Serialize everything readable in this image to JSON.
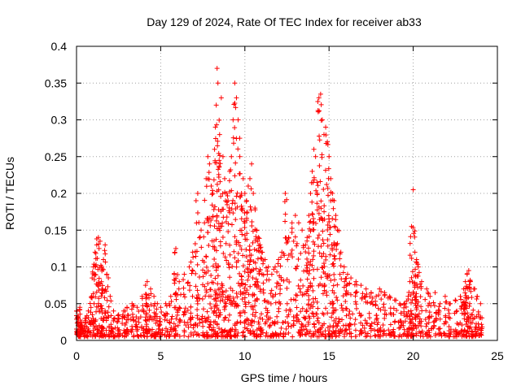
{
  "chart_data": {
    "type": "scatter",
    "title": "Day 129 of 2024, Rate Of TEC Index for receiver ab33",
    "xlabel": "GPS time / hours",
    "ylabel": "ROTI / TECUs",
    "xlim": [
      0,
      25
    ],
    "ylim": [
      0,
      0.4
    ],
    "xticks": [
      "0",
      "5",
      "10",
      "15",
      "20",
      "25"
    ],
    "yticks": [
      "0",
      "0.05",
      "0.1",
      "0.15",
      "0.2",
      "0.25",
      "0.3",
      "0.35",
      "0.4"
    ],
    "grid": true,
    "marker": "+",
    "color": "#ff0000",
    "series": [
      {
        "name": "ROTI",
        "description_points": "representative sample of plotted points (hours, TECU/min)",
        "x": [
          0.0,
          0.1,
          0.2,
          0.3,
          0.5,
          0.7,
          0.9,
          1.0,
          1.1,
          1.2,
          1.3,
          1.4,
          1.5,
          1.6,
          1.7,
          1.8,
          2.0,
          2.2,
          2.5,
          2.8,
          3.0,
          3.3,
          3.6,
          3.9,
          4.1,
          4.2,
          4.4,
          4.6,
          4.8,
          5.0,
          5.3,
          5.6,
          5.8,
          5.9,
          6.1,
          6.4,
          6.7,
          6.9,
          7.1,
          7.2,
          7.4,
          7.6,
          7.7,
          7.8,
          7.9,
          8.0,
          8.1,
          8.2,
          8.25,
          8.3,
          8.35,
          8.4,
          8.5,
          8.6,
          8.7,
          8.8,
          8.9,
          9.0,
          9.1,
          9.2,
          9.3,
          9.4,
          9.5,
          9.6,
          9.7,
          9.8,
          9.9,
          10.0,
          10.1,
          10.2,
          10.3,
          10.4,
          10.5,
          10.6,
          10.7,
          10.8,
          10.9,
          11.0,
          11.2,
          11.4,
          11.6,
          11.8,
          12.0,
          12.2,
          12.4,
          12.6,
          12.8,
          13.0,
          13.2,
          13.4,
          13.6,
          13.7,
          13.8,
          13.9,
          14.0,
          14.1,
          14.2,
          14.3,
          14.4,
          14.5,
          14.6,
          14.7,
          14.8,
          14.9,
          15.0,
          15.1,
          15.2,
          15.3,
          15.4,
          15.5,
          15.7,
          15.9,
          16.1,
          16.3,
          16.6,
          16.9,
          17.2,
          17.5,
          17.8,
          18.0,
          18.3,
          18.6,
          18.9,
          19.2,
          19.5,
          19.7,
          19.8,
          19.9,
          20.0,
          20.1,
          20.2,
          20.3,
          20.5,
          20.8,
          21.0,
          21.3,
          21.6,
          21.9,
          22.2,
          22.5,
          22.8,
          23.0,
          23.1,
          23.2,
          23.3,
          23.4,
          23.6,
          23.8,
          24.0
        ],
        "y": [
          0.04,
          0.03,
          0.045,
          0.025,
          0.03,
          0.04,
          0.06,
          0.1,
          0.12,
          0.13,
          0.14,
          0.135,
          0.1,
          0.11,
          0.13,
          0.09,
          0.06,
          0.04,
          0.035,
          0.04,
          0.045,
          0.05,
          0.045,
          0.06,
          0.075,
          0.08,
          0.07,
          0.06,
          0.05,
          0.045,
          0.05,
          0.06,
          0.09,
          0.125,
          0.08,
          0.09,
          0.1,
          0.12,
          0.19,
          0.2,
          0.15,
          0.16,
          0.22,
          0.25,
          0.24,
          0.21,
          0.2,
          0.26,
          0.29,
          0.32,
          0.37,
          0.35,
          0.28,
          0.33,
          0.25,
          0.22,
          0.2,
          0.19,
          0.23,
          0.25,
          0.3,
          0.35,
          0.33,
          0.3,
          0.25,
          0.2,
          0.22,
          0.2,
          0.19,
          0.21,
          0.22,
          0.24,
          0.2,
          0.18,
          0.15,
          0.14,
          0.13,
          0.12,
          0.11,
          0.1,
          0.09,
          0.1,
          0.11,
          0.12,
          0.2,
          0.14,
          0.16,
          0.17,
          0.16,
          0.15,
          0.13,
          0.14,
          0.17,
          0.2,
          0.23,
          0.26,
          0.25,
          0.2,
          0.33,
          0.335,
          0.3,
          0.28,
          0.29,
          0.27,
          0.25,
          0.22,
          0.2,
          0.19,
          0.17,
          0.15,
          0.12,
          0.1,
          0.09,
          0.085,
          0.08,
          0.075,
          0.07,
          0.065,
          0.06,
          0.07,
          0.065,
          0.06,
          0.055,
          0.05,
          0.05,
          0.06,
          0.08,
          0.155,
          0.205,
          0.12,
          0.11,
          0.1,
          0.08,
          0.07,
          0.06,
          0.065,
          0.05,
          0.06,
          0.05,
          0.055,
          0.06,
          0.07,
          0.08,
          0.09,
          0.095,
          0.08,
          0.07,
          0.06,
          0.05
        ]
      }
    ]
  }
}
